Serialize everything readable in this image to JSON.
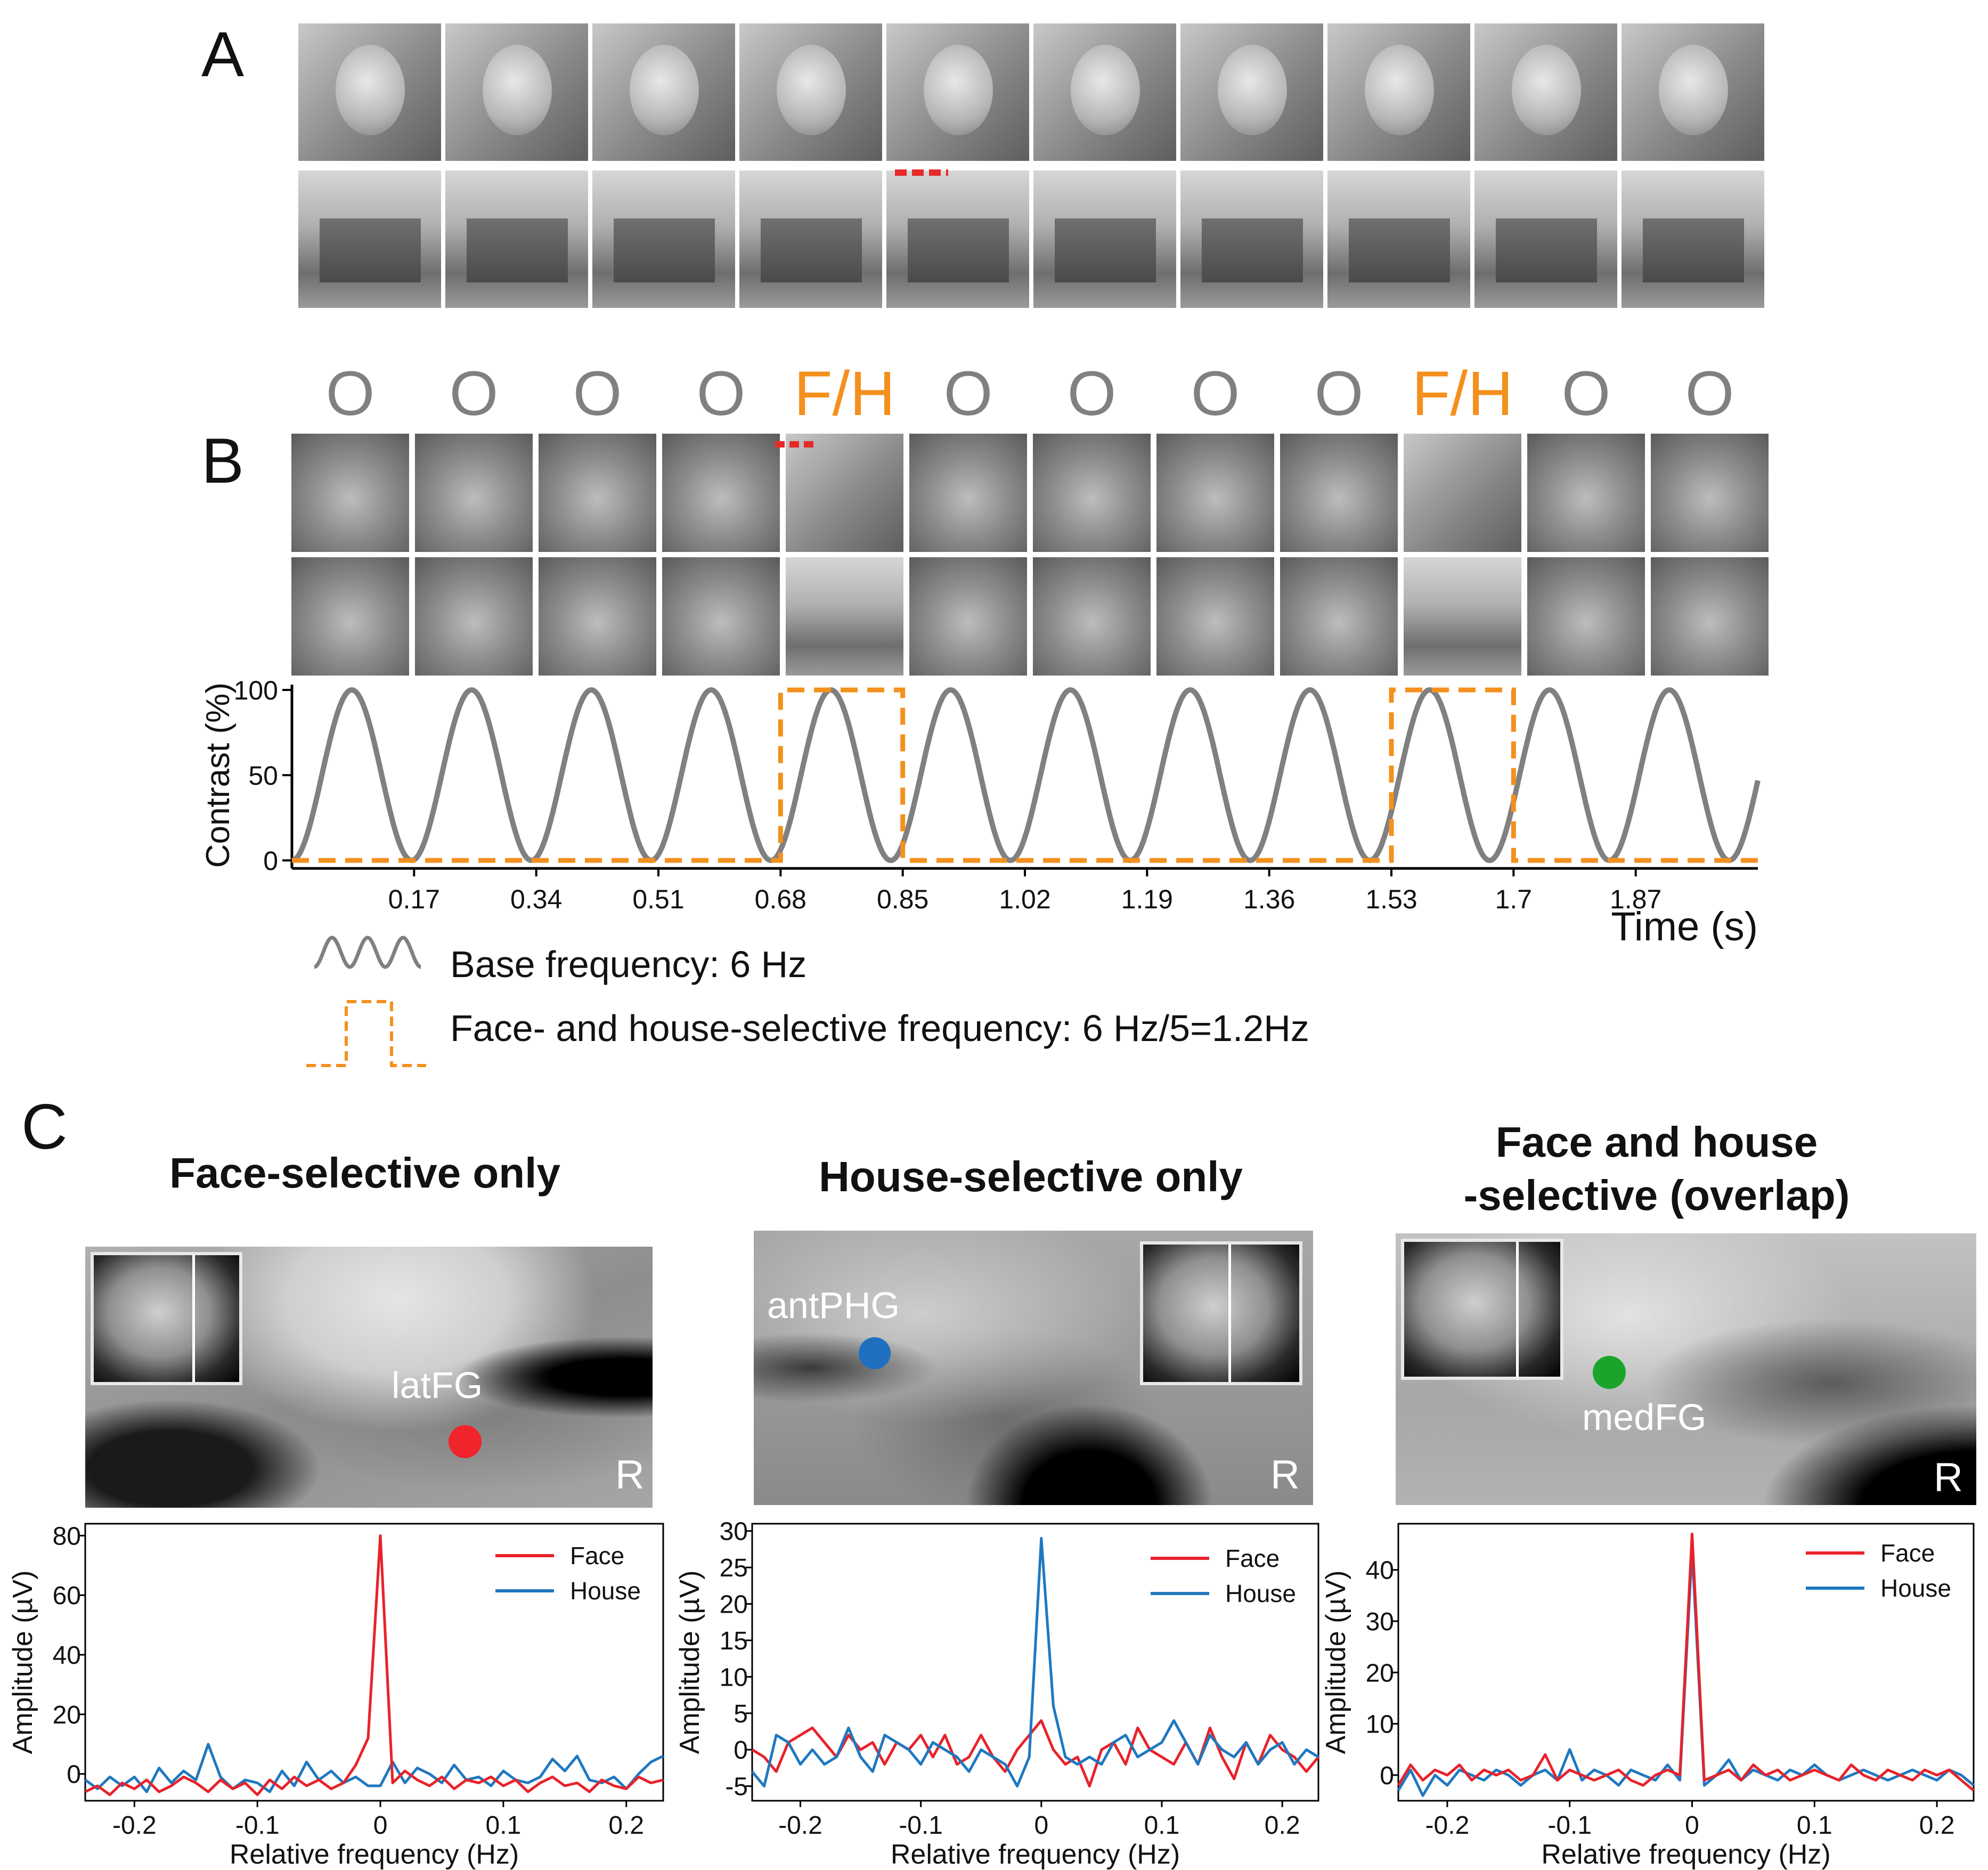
{
  "panels": {
    "A": {
      "letter": "A"
    },
    "B": {
      "letter": "B",
      "sequence": [
        "O",
        "O",
        "O",
        "O",
        "F/H",
        "O",
        "O",
        "O",
        "O",
        "F/H",
        "O",
        "O"
      ],
      "legend": {
        "base": "Base frequency: 6 Hz",
        "selective": "Face- and house-selective frequency: 6 Hz/5=1.2Hz"
      }
    },
    "C": {
      "letter": "C",
      "regions": [
        {
          "title_lines": [
            "Face-selective only"
          ],
          "label": "latFG",
          "side": "R",
          "dot_color": "#f0242a"
        },
        {
          "title_lines": [
            "House-selective only"
          ],
          "label": "antPHG",
          "side": "R",
          "dot_color": "#1f6fc0"
        },
        {
          "title_lines": [
            "Face and house",
            "-selective (overlap)"
          ],
          "label": "medFG",
          "side": "R",
          "dot_color": "#1aa52a"
        }
      ]
    }
  },
  "colors": {
    "face": "#e8222b",
    "house": "#1f78c0",
    "sine": "#808080",
    "square": "#f4901e",
    "O_label": "#808080",
    "FH_label": "#f4901e"
  },
  "chart_data": [
    {
      "type": "line",
      "title": "",
      "xlabel": "Time (s)",
      "ylabel": "Contrast (%)",
      "xlim": [
        0,
        2.04
      ],
      "ylim": [
        0,
        100
      ],
      "xticks": [
        "0.17",
        "0.34",
        "0.51",
        "0.68",
        "0.85",
        "1.02",
        "1.19",
        "1.36",
        "1.53",
        "1.7",
        "1.87"
      ],
      "yticks": [
        "0",
        "50",
        "100"
      ],
      "series": [
        {
          "name": "Base frequency: 6 Hz",
          "shape": "sine",
          "frequency_hz": 6,
          "min": 0,
          "max": 100
        },
        {
          "name": "Face- and house-selective frequency: 6 Hz/5=1.2Hz",
          "shape": "square",
          "on_intervals": [
            [
              0.68,
              0.85
            ],
            [
              1.53,
              1.7
            ]
          ],
          "low": 0,
          "high": 100
        }
      ]
    },
    {
      "type": "line",
      "title": "Face-selective only",
      "xlabel": "Relative frequency (Hz)",
      "ylabel": "Amplitude (µV)",
      "xlim": [
        -0.24,
        0.23
      ],
      "ylim": [
        -9,
        84
      ],
      "xticks": [
        "-0.2",
        "-0.1",
        "0",
        "0.1",
        "0.2"
      ],
      "yticks": [
        "0",
        "20",
        "40",
        "60",
        "80"
      ],
      "x": [
        -0.24,
        -0.23,
        -0.22,
        -0.21,
        -0.2,
        -0.19,
        -0.18,
        -0.17,
        -0.16,
        -0.15,
        -0.14,
        -0.13,
        -0.12,
        -0.11,
        -0.1,
        -0.09,
        -0.08,
        -0.07,
        -0.06,
        -0.05,
        -0.04,
        -0.03,
        -0.02,
        -0.01,
        0,
        0.01,
        0.02,
        0.03,
        0.04,
        0.05,
        0.06,
        0.07,
        0.08,
        0.09,
        0.1,
        0.11,
        0.12,
        0.13,
        0.14,
        0.15,
        0.16,
        0.17,
        0.18,
        0.19,
        0.2,
        0.21,
        0.22,
        0.23
      ],
      "series": [
        {
          "name": "Face",
          "values": [
            -6,
            -4,
            -7,
            -3,
            -5,
            -2,
            -6,
            -4,
            -1,
            -3,
            -6,
            -2,
            -5,
            -3,
            -7,
            -2,
            -5,
            -1,
            -4,
            -2,
            -5,
            -3,
            3,
            12,
            80,
            -3,
            1,
            -2,
            -4,
            -1,
            -5,
            -2,
            -3,
            -1,
            -4,
            -2,
            -6,
            -3,
            -1,
            -4,
            -3,
            -6,
            -2,
            -4,
            -5,
            -1,
            -3,
            -2
          ]
        },
        {
          "name": "House",
          "values": [
            -2,
            -5,
            -1,
            -4,
            -1,
            -6,
            2,
            -3,
            1,
            -2,
            10,
            -1,
            -5,
            -2,
            -3,
            -6,
            1,
            -4,
            4,
            -2,
            1,
            -3,
            -1,
            -4,
            -4,
            4,
            -3,
            2,
            0,
            -3,
            3,
            -2,
            -1,
            -4,
            1,
            -2,
            -3,
            -1,
            5,
            1,
            6,
            -2,
            -3,
            -1,
            -5,
            0,
            4,
            6
          ]
        }
      ]
    },
    {
      "type": "line",
      "title": "House-selective only",
      "xlabel": "Relative frequency (Hz)",
      "ylabel": "Amplitude (µV)",
      "xlim": [
        -0.24,
        0.23
      ],
      "ylim": [
        -7,
        31
      ],
      "xticks": [
        "-0.2",
        "-0.1",
        "0",
        "0.1",
        "0.2"
      ],
      "yticks": [
        "-5",
        "0",
        "5",
        "10",
        "15",
        "20",
        "25",
        "30"
      ],
      "x": [
        -0.24,
        -0.23,
        -0.22,
        -0.21,
        -0.2,
        -0.19,
        -0.18,
        -0.17,
        -0.16,
        -0.15,
        -0.14,
        -0.13,
        -0.12,
        -0.11,
        -0.1,
        -0.09,
        -0.08,
        -0.07,
        -0.06,
        -0.05,
        -0.04,
        -0.03,
        -0.02,
        -0.01,
        0,
        0.01,
        0.02,
        0.03,
        0.04,
        0.05,
        0.06,
        0.07,
        0.08,
        0.09,
        0.1,
        0.11,
        0.12,
        0.13,
        0.14,
        0.15,
        0.16,
        0.17,
        0.18,
        0.19,
        0.2,
        0.21,
        0.22,
        0.23
      ],
      "series": [
        {
          "name": "Face",
          "values": [
            0,
            -1,
            -3,
            1,
            2,
            3,
            1,
            -1,
            2,
            0,
            1,
            -2,
            1,
            0,
            2,
            -1,
            2,
            -2,
            -1,
            2,
            -1,
            -3,
            0,
            2,
            4,
            0,
            -2,
            -1,
            -5,
            0,
            1,
            -2,
            3,
            0,
            -1,
            -2,
            1,
            -2,
            3,
            -1,
            -4,
            1,
            -2,
            2,
            0,
            -1,
            -3,
            -1
          ]
        },
        {
          "name": "House",
          "values": [
            -3,
            -5,
            2,
            1,
            -2,
            0,
            -2,
            -1,
            3,
            -1,
            -3,
            2,
            1,
            0,
            -2,
            1,
            0,
            -1,
            -3,
            0,
            -1,
            -2,
            -5,
            -1,
            29,
            6,
            -1,
            -2,
            -1,
            -2,
            1,
            2,
            -1,
            0,
            1,
            4,
            1,
            -2,
            2,
            0,
            -1,
            1,
            -2,
            0,
            1,
            -2,
            0,
            -1
          ]
        }
      ]
    },
    {
      "type": "line",
      "title": "Face and house -selective (overlap)",
      "xlabel": "Relative frequency (Hz)",
      "ylabel": "Amplitude (µV)",
      "xlim": [
        -0.24,
        0.23
      ],
      "ylim": [
        -5,
        49
      ],
      "xticks": [
        "-0.2",
        "-0.1",
        "0",
        "0.1",
        "0.2"
      ],
      "yticks": [
        "0",
        "10",
        "20",
        "30",
        "40"
      ],
      "x": [
        -0.24,
        -0.23,
        -0.22,
        -0.21,
        -0.2,
        -0.19,
        -0.18,
        -0.17,
        -0.16,
        -0.15,
        -0.14,
        -0.13,
        -0.12,
        -0.11,
        -0.1,
        -0.09,
        -0.08,
        -0.07,
        -0.06,
        -0.05,
        -0.04,
        -0.03,
        -0.02,
        -0.01,
        0,
        0.01,
        0.02,
        0.03,
        0.04,
        0.05,
        0.06,
        0.07,
        0.08,
        0.09,
        0.1,
        0.11,
        0.12,
        0.13,
        0.14,
        0.15,
        0.16,
        0.17,
        0.18,
        0.19,
        0.2,
        0.21,
        0.22,
        0.23
      ],
      "series": [
        {
          "name": "Face",
          "values": [
            -2,
            2,
            -1,
            1,
            0,
            2,
            -1,
            1,
            0,
            1,
            -1,
            0,
            4,
            -1,
            1,
            0,
            -1,
            0,
            1,
            -1,
            -2,
            0,
            1,
            0,
            47,
            -1,
            0,
            1,
            -1,
            2,
            0,
            1,
            -1,
            0,
            1,
            0,
            -1,
            2,
            0,
            -1,
            1,
            0,
            -1,
            1,
            0,
            1,
            -1,
            -3
          ]
        },
        {
          "name": "House",
          "values": [
            -3,
            1,
            -4,
            0,
            -2,
            1,
            0,
            -1,
            1,
            0,
            -2,
            0,
            1,
            -1,
            5,
            -1,
            1,
            0,
            -2,
            1,
            0,
            -1,
            2,
            -1,
            44,
            -2,
            0,
            3,
            -1,
            1,
            0,
            -1,
            1,
            0,
            2,
            0,
            -1,
            0,
            1,
            0,
            -1,
            0,
            1,
            0,
            -1,
            1,
            0,
            -2
          ]
        }
      ]
    }
  ]
}
